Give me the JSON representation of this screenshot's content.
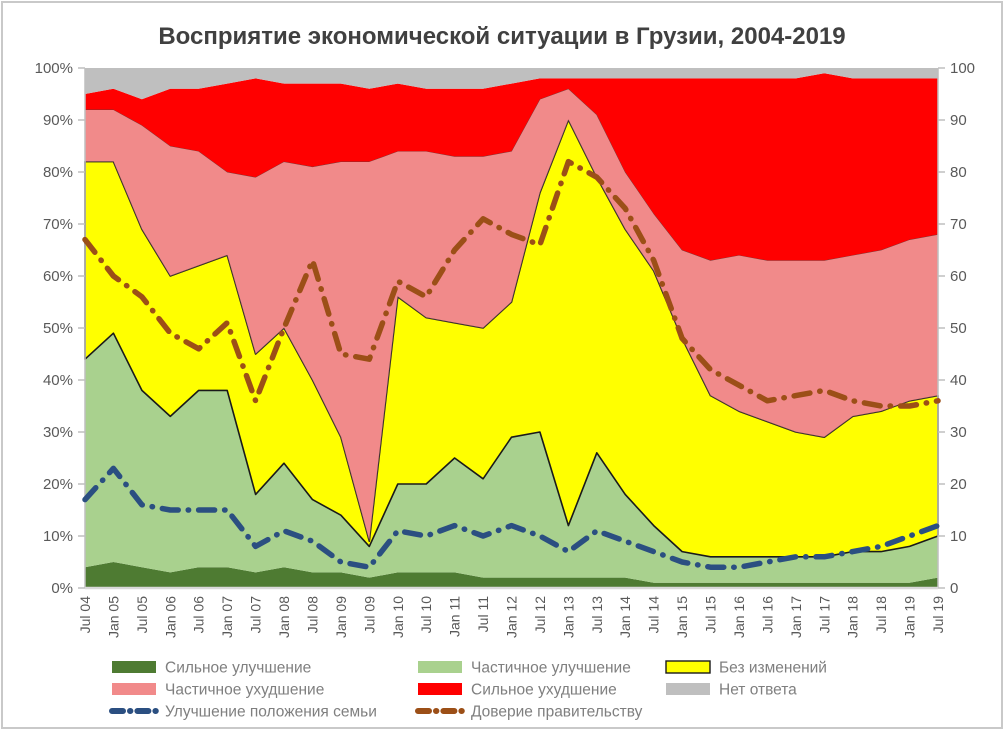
{
  "chart_data": {
    "type": "area",
    "stacked": true,
    "title": "Восприятие экономической ситуации в Грузии, 2004-2019",
    "x_labels": [
      "Jul 04",
      "Jan 05",
      "Jul 05",
      "Jan 06",
      "Jul 06",
      "Jan 07",
      "Jul 07",
      "Jan 08",
      "Jul 08",
      "Jan 09",
      "Jul 09",
      "Jan 10",
      "Jul 10",
      "Jan 11",
      "Jul 11",
      "Jan 12",
      "Jul 12",
      "Jan 13",
      "Jul 13",
      "Jan 14",
      "Jul 14",
      "Jan 15",
      "Jul 15",
      "Jan 16",
      "Jul 16",
      "Jan 17",
      "Jul 17",
      "Jan 18",
      "Jul 18",
      "Jan 19",
      "Jul 19"
    ],
    "y_axis_left": {
      "min": 0,
      "max": 100,
      "step": 10,
      "suffix": "%"
    },
    "y_axis_right": {
      "min": 0,
      "max": 100,
      "step": 10,
      "suffix": ""
    },
    "areas": [
      {
        "key": "strong-improvement",
        "label": "Сильное улучшение",
        "color": "#4E7B32",
        "values": [
          4,
          5,
          4,
          3,
          4,
          4,
          3,
          4,
          3,
          3,
          2,
          3,
          3,
          3,
          2,
          2,
          2,
          2,
          2,
          2,
          1,
          1,
          1,
          1,
          1,
          1,
          1,
          1,
          1,
          1,
          2
        ]
      },
      {
        "key": "partial-improvement",
        "label": "Частичное улучшение",
        "color": "#A9D18E",
        "values": [
          40,
          44,
          34,
          30,
          34,
          34,
          15,
          20,
          14,
          11,
          6,
          17,
          17,
          22,
          19,
          27,
          28,
          10,
          24,
          16,
          11,
          6,
          5,
          5,
          5,
          5,
          5,
          6,
          6,
          7,
          8
        ]
      },
      {
        "key": "no-change",
        "label": "Без изменений",
        "color": "#FFFF00",
        "border": "#1a1a1a",
        "values": [
          38,
          33,
          31,
          27,
          24,
          26,
          27,
          26,
          23,
          15,
          1,
          36,
          32,
          26,
          29,
          26,
          46,
          78,
          53,
          51,
          49,
          41,
          31,
          28,
          26,
          24,
          23,
          26,
          27,
          28,
          27
        ]
      },
      {
        "key": "partial-worsening",
        "label": "Частичное ухудшение",
        "color": "#F18A8A",
        "border": "#59403f",
        "values": [
          10,
          10,
          20,
          25,
          22,
          16,
          34,
          32,
          41,
          53,
          73,
          28,
          32,
          32,
          33,
          29,
          18,
          6,
          12,
          11,
          11,
          17,
          26,
          30,
          31,
          33,
          34,
          31,
          31,
          31,
          31
        ]
      },
      {
        "key": "strong-worsening",
        "label": "Сильное ухудшение",
        "color": "#FF0000",
        "values": [
          3,
          4,
          5,
          11,
          12,
          17,
          19,
          15,
          16,
          15,
          14,
          13,
          12,
          13,
          13,
          13,
          4,
          2,
          7,
          18,
          26,
          33,
          35,
          34,
          35,
          35,
          36,
          34,
          33,
          31,
          30
        ]
      },
      {
        "key": "no-answer",
        "label": "Нет ответа",
        "color": "#BFBFBF",
        "values": [
          5,
          4,
          6,
          4,
          4,
          3,
          2,
          3,
          3,
          3,
          4,
          3,
          4,
          4,
          4,
          3,
          2,
          2,
          2,
          2,
          2,
          2,
          2,
          2,
          2,
          2,
          1,
          2,
          2,
          2,
          2
        ]
      }
    ],
    "lines": [
      {
        "key": "family-improvement-line",
        "label": "Улучшение положения семьи",
        "color": "#2B4F81",
        "values": [
          17,
          23,
          16,
          15,
          15,
          15,
          8,
          11,
          9,
          5,
          4,
          11,
          10,
          12,
          10,
          12,
          10,
          7,
          11,
          9,
          7,
          5,
          4,
          4,
          5,
          6,
          6,
          7,
          8,
          10,
          12
        ]
      },
      {
        "key": "government-trust-line",
        "label": "Доверие правительству",
        "color": "#9C4F17",
        "values": [
          67,
          60,
          56,
          49,
          46,
          51,
          36,
          50,
          63,
          45,
          44,
          59,
          56,
          65,
          71,
          68,
          66,
          82,
          79,
          73,
          63,
          48,
          42,
          39,
          36,
          37,
          38,
          36,
          35,
          35,
          36
        ]
      }
    ],
    "legend_order": [
      [
        "strong-improvement",
        "partial-improvement",
        "no-change"
      ],
      [
        "partial-worsening",
        "strong-worsening",
        "no-answer"
      ],
      [
        "family-improvement-line",
        "government-trust-line"
      ]
    ],
    "colors": {
      "title_text": "#404040",
      "axis_text": "#595959",
      "legend_text": "#7f7f7f",
      "axis_line": "#bfbfbf",
      "baseline": "#d9d9d9"
    }
  }
}
